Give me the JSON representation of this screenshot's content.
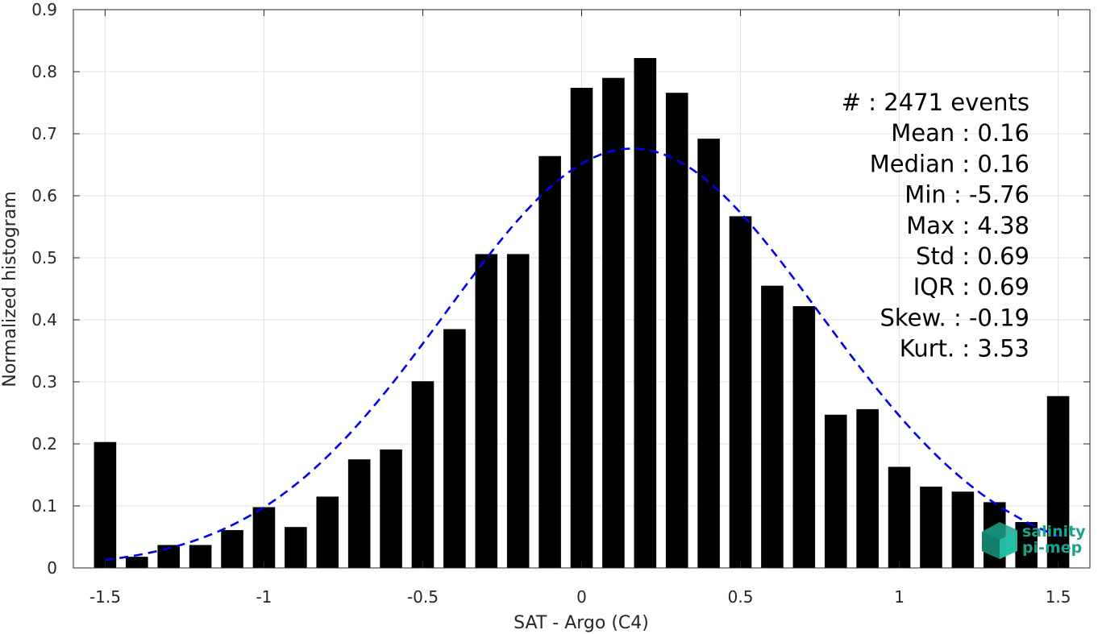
{
  "chart_data": {
    "type": "bar",
    "xlabel": "SAT - Argo (C4)",
    "ylabel": "Normalized histogram",
    "xlim": [
      -1.6,
      1.6
    ],
    "ylim": [
      0,
      0.9
    ],
    "grid": true,
    "xticks": [
      -1.5,
      -1,
      -0.5,
      0,
      0.5,
      1,
      1.5
    ],
    "xtick_labels": [
      "-1.5",
      "-1",
      "-0.5",
      "0",
      "0.5",
      "1",
      "1.5"
    ],
    "yticks": [
      0,
      0.1,
      0.2,
      0.3,
      0.4,
      0.5,
      0.6,
      0.7,
      0.8,
      0.9
    ],
    "ytick_labels": [
      "0",
      "0.1",
      "0.2",
      "0.3",
      "0.4",
      "0.5",
      "0.6",
      "0.7",
      "0.8",
      "0.9"
    ],
    "bar_width": 0.07,
    "x": [
      -1.5,
      -1.4,
      -1.3,
      -1.2,
      -1.1,
      -1.0,
      -0.9,
      -0.8,
      -0.7,
      -0.6,
      -0.5,
      -0.4,
      -0.3,
      -0.2,
      -0.1,
      0.0,
      0.1,
      0.2,
      0.3,
      0.4,
      0.5,
      0.6,
      0.7,
      0.8,
      0.9,
      1.0,
      1.1,
      1.2,
      1.3,
      1.4,
      1.5
    ],
    "values": [
      0.203,
      0.018,
      0.037,
      0.037,
      0.061,
      0.098,
      0.066,
      0.115,
      0.175,
      0.191,
      0.301,
      0.385,
      0.506,
      0.506,
      0.664,
      0.774,
      0.79,
      0.822,
      0.766,
      0.692,
      0.567,
      0.455,
      0.422,
      0.247,
      0.256,
      0.163,
      0.131,
      0.123,
      0.106,
      0.074,
      0.277
    ],
    "fit": {
      "type": "gaussian",
      "style": "dashed",
      "color": "#0000ee",
      "mean": 0.16,
      "std": 0.59,
      "peak": 0.676,
      "x_range": [
        -1.5,
        1.5
      ]
    },
    "bar_color": "#000000",
    "annotations": [
      {
        "label": "#  ",
        "value": ": 2471 events"
      },
      {
        "label": "Mean ",
        "value": ": 0.16"
      },
      {
        "label": "Median ",
        "value": ": 0.16"
      },
      {
        "label": "Min ",
        "value": ": -5.76"
      },
      {
        "label": "Max ",
        "value": ": 4.38"
      },
      {
        "label": "Std ",
        "value": ": 0.69"
      },
      {
        "label": "IQR ",
        "value": ": 0.69"
      },
      {
        "label": "Skew. ",
        "value": ": -0.19"
      },
      {
        "label": "Kurt. ",
        "value": ": 3.53"
      }
    ]
  },
  "logo": {
    "line1": "salinity",
    "line2": "pi-mep",
    "color": "#1aa38a"
  }
}
